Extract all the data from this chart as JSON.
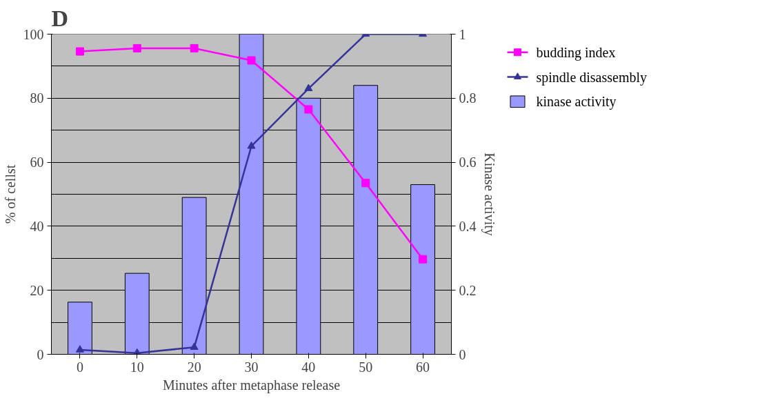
{
  "chart_data": {
    "type": "line",
    "title": "D",
    "xlabel": "Minutes after metaphase release",
    "ylabel": "% of cellst",
    "y2label": "Kinase activity",
    "categories": [
      "0",
      "10",
      "20",
      "30",
      "40",
      "50",
      "60"
    ],
    "series": [
      {
        "name": "budding index",
        "color": "#ff00ff",
        "marker": "square",
        "values": [
          94.6,
          95.6,
          95.6,
          91.8,
          76.5,
          53.5,
          29.7
        ]
      },
      {
        "name": "spindle disassembly",
        "color": "#333399",
        "marker": "triangle",
        "values": [
          1.4,
          0.4,
          2.2,
          65,
          83,
          100,
          100
        ]
      },
      {
        "name": "kinase activity",
        "type": "bar",
        "axis": "y2",
        "color": "#9999ff",
        "values": [
          0.163,
          0.253,
          0.49,
          1.0,
          0.8,
          0.84,
          0.53
        ]
      }
    ],
    "ylim": [
      0,
      100
    ],
    "yticks": [
      0,
      20,
      40,
      60,
      80,
      100
    ],
    "y2lim": [
      0,
      1
    ],
    "y2ticks": [
      0,
      {
        "value": 0.2,
        "label": "0.2"
      },
      {
        "value": 0.4,
        "label": "0.4"
      },
      {
        "value": 0.6,
        "label": "0.6"
      },
      {
        "value": 0.8,
        "label": "0.8"
      },
      1
    ],
    "grid": "y",
    "legend": "right",
    "line_style": "solid"
  }
}
